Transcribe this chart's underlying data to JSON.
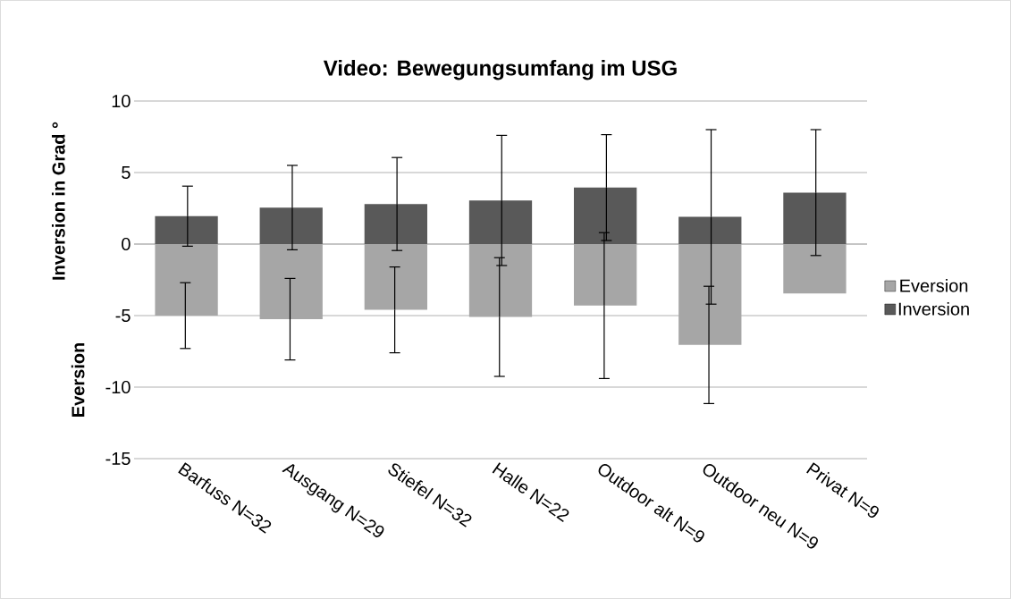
{
  "chart_data": {
    "type": "bar",
    "title": "Video: Bewegungsumfang im USG",
    "ylabel": "Inversion in Grad °",
    "annotations": [
      "Eversion"
    ],
    "categories": [
      "Barfuss N=32",
      "Ausgang N=29",
      "Stiefel N=32",
      "Halle N=22",
      "Outdoor alt N=9",
      "Outdoor neu N=9",
      "Privat N=9"
    ],
    "series": [
      {
        "name": "Eversion",
        "color": "#a6a6a6",
        "values": [
          -5.0,
          -5.25,
          -4.6,
          -5.1,
          -4.3,
          -7.05,
          -3.45
        ],
        "errors": [
          2.3,
          2.85,
          3.0,
          4.15,
          5.1,
          4.1,
          null
        ]
      },
      {
        "name": "Inversion",
        "color": "#595959",
        "values": [
          1.95,
          2.55,
          2.8,
          3.05,
          3.95,
          1.9,
          3.6
        ],
        "errors": [
          2.1,
          2.95,
          3.25,
          4.55,
          3.7,
          6.1,
          4.4
        ]
      }
    ],
    "stacked": true,
    "ylim": [
      -15,
      10
    ],
    "yticks": [
      -15,
      -10,
      -5,
      0,
      5,
      10
    ],
    "grid": "y",
    "legend": "right"
  }
}
